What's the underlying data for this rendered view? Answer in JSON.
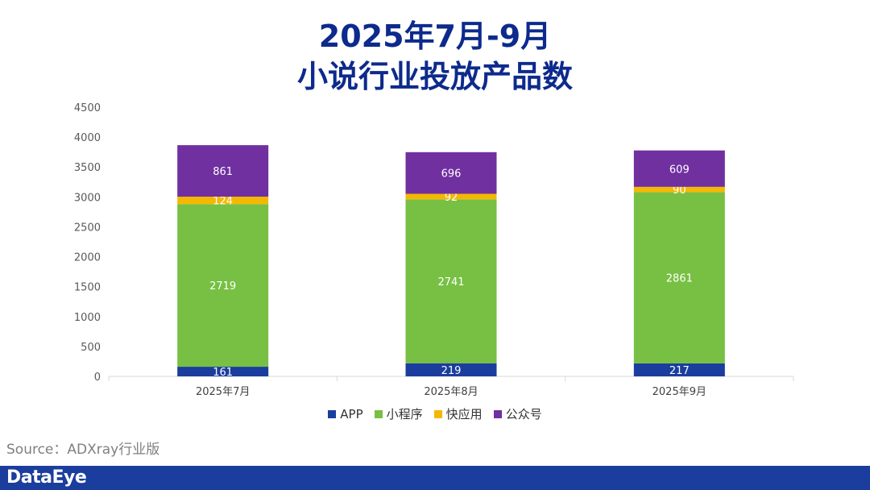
{
  "page": {
    "title_line1": "2025年7月-9月",
    "title_line2": "小说行业投放产品数",
    "source": "Source：ADXray行业版",
    "logo": "DataEye"
  },
  "chart_data": {
    "type": "bar",
    "stacked": true,
    "title": "2025年7月-9月 小说行业投放产品数",
    "categories": [
      "2025年7月",
      "2025年8月",
      "2025年9月"
    ],
    "series": [
      {
        "name": "APP",
        "values": [
          161,
          219,
          217
        ],
        "color": "#1a3d9e"
      },
      {
        "name": "小程序",
        "values": [
          2719,
          2741,
          2861
        ],
        "color": "#77c043"
      },
      {
        "name": "快应用",
        "values": [
          124,
          92,
          90
        ],
        "color": "#f5b800"
      },
      {
        "name": "公众号",
        "values": [
          861,
          696,
          609
        ],
        "color": "#7030a0"
      }
    ],
    "ylim": [
      0,
      4500
    ],
    "yticks": [
      0,
      500,
      1000,
      1500,
      2000,
      2500,
      3000,
      3500,
      4000,
      4500
    ],
    "grid": false,
    "legend_position": "bottom",
    "xlabel": "",
    "ylabel": ""
  }
}
